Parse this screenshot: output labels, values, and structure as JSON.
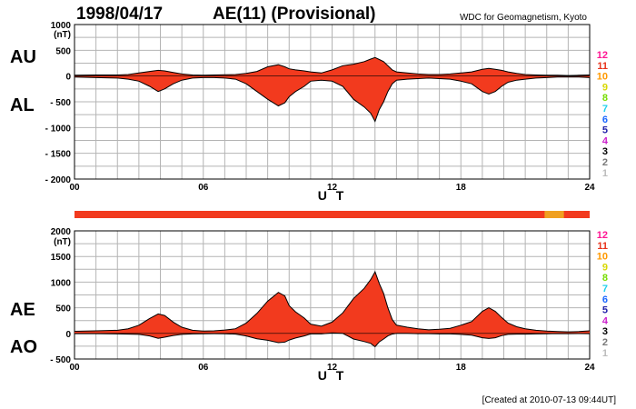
{
  "header": {
    "date": "1998/04/17",
    "title": "AE(11) (Provisional)",
    "source": "WDC for Geomagnetism, Kyoto"
  },
  "footer": "[Created at 2010-07-13 09:44UT]",
  "colors": {
    "fill": "#f23a1e",
    "outline": "#000000",
    "grid": "#b4b4b4",
    "station_bar_main": "#f23a1e",
    "station_bar_alt": "#f0a020"
  },
  "legend_counts": [
    {
      "label": "12",
      "color": "#ff1493"
    },
    {
      "label": "11",
      "color": "#e8331c"
    },
    {
      "label": "10",
      "color": "#ff9900"
    },
    {
      "label": "9",
      "color": "#d8d800"
    },
    {
      "label": "8",
      "color": "#77dd00"
    },
    {
      "label": "7",
      "color": "#22d0ee"
    },
    {
      "label": "6",
      "color": "#1a66ff"
    },
    {
      "label": "5",
      "color": "#2222aa"
    },
    {
      "label": "4",
      "color": "#cc22cc"
    },
    {
      "label": "3",
      "color": "#000000"
    },
    {
      "label": "2",
      "color": "#777777"
    },
    {
      "label": "1",
      "color": "#bbbbbb"
    }
  ],
  "chart_data": [
    {
      "type": "area",
      "xlabel": "U T",
      "ylabel_unit": "(nT)",
      "xlim": [
        0,
        24
      ],
      "ylim": [
        -2000,
        1000
      ],
      "xticks": [
        "00",
        "06",
        "12",
        "18",
        "24"
      ],
      "yticks": [
        "1000",
        "500",
        "0",
        "- 500",
        "- 1000",
        "- 1500",
        "- 2000"
      ],
      "upper_label": "AU",
      "lower_label": "AL",
      "x": [
        0,
        1,
        2,
        2.5,
        3,
        3.5,
        3.9,
        4.2,
        4.6,
        5,
        5.5,
        6,
        6.5,
        7,
        7.5,
        8,
        8.5,
        9,
        9.5,
        9.8,
        10,
        10.3,
        10.7,
        11,
        11.5,
        12,
        12.5,
        13,
        13.5,
        13.8,
        14,
        14.2,
        14.4,
        14.6,
        14.8,
        15,
        15.5,
        16,
        16.5,
        17,
        17.5,
        18,
        18.5,
        19,
        19.3,
        19.6,
        19.9,
        20.2,
        20.6,
        21,
        21.5,
        22,
        22.5,
        23,
        23.5,
        24
      ],
      "series": [
        {
          "values": [
            15,
            20,
            20,
            30,
            60,
            90,
            110,
            100,
            70,
            40,
            20,
            15,
            20,
            25,
            30,
            50,
            90,
            180,
            220,
            180,
            140,
            120,
            100,
            80,
            60,
            120,
            200,
            230,
            280,
            330,
            360,
            320,
            280,
            200,
            120,
            80,
            60,
            40,
            30,
            30,
            40,
            60,
            80,
            130,
            150,
            130,
            110,
            80,
            50,
            30,
            20,
            15,
            15,
            10,
            15,
            20
          ]
        },
        {
          "values": [
            -20,
            -30,
            -40,
            -60,
            -100,
            -200,
            -300,
            -250,
            -150,
            -80,
            -40,
            -30,
            -30,
            -40,
            -60,
            -150,
            -300,
            -450,
            -580,
            -520,
            -400,
            -300,
            -200,
            -100,
            -80,
            -100,
            -200,
            -450,
            -600,
            -720,
            -880,
            -650,
            -500,
            -300,
            -150,
            -80,
            -60,
            -50,
            -40,
            -50,
            -60,
            -100,
            -150,
            -300,
            -350,
            -300,
            -200,
            -120,
            -80,
            -60,
            -40,
            -30,
            -20,
            -20,
            -20,
            -30
          ]
        }
      ]
    },
    {
      "type": "area",
      "xlabel": "U T",
      "ylabel_unit": "(nT)",
      "xlim": [
        0,
        24
      ],
      "ylim": [
        -500,
        2000
      ],
      "xticks": [
        "00",
        "06",
        "12",
        "18",
        "24"
      ],
      "yticks": [
        "2000",
        "1500",
        "1000",
        "500",
        "0",
        "- 500"
      ],
      "upper_label": "AE",
      "lower_label": "AO",
      "x": [
        0,
        1,
        2,
        2.5,
        3,
        3.5,
        3.9,
        4.2,
        4.6,
        5,
        5.5,
        6,
        6.5,
        7,
        7.5,
        8,
        8.5,
        9,
        9.5,
        9.8,
        10,
        10.3,
        10.7,
        11,
        11.5,
        12,
        12.5,
        13,
        13.5,
        13.8,
        14,
        14.2,
        14.4,
        14.6,
        14.8,
        15,
        15.5,
        16,
        16.5,
        17,
        17.5,
        18,
        18.5,
        19,
        19.3,
        19.6,
        19.9,
        20.2,
        20.6,
        21,
        21.5,
        22,
        22.5,
        23,
        23.5,
        24
      ],
      "series": [
        {
          "values": [
            40,
            50,
            60,
            90,
            160,
            290,
            380,
            350,
            220,
            120,
            60,
            45,
            50,
            65,
            90,
            200,
            390,
            630,
            800,
            730,
            540,
            420,
            300,
            180,
            140,
            220,
            400,
            680,
            880,
            1050,
            1200,
            970,
            780,
            500,
            270,
            160,
            120,
            90,
            70,
            80,
            100,
            160,
            230,
            430,
            500,
            430,
            310,
            200,
            130,
            90,
            60,
            45,
            35,
            30,
            35,
            50
          ]
        },
        {
          "values": [
            -5,
            -5,
            -10,
            -15,
            -20,
            -50,
            -95,
            -75,
            -40,
            -20,
            -10,
            -7,
            -5,
            -7,
            -15,
            -50,
            -105,
            -135,
            -180,
            -170,
            -130,
            -90,
            -50,
            -10,
            -10,
            10,
            0,
            -110,
            -160,
            -195,
            -260,
            -165,
            -110,
            -50,
            -15,
            0,
            0,
            -5,
            -5,
            -10,
            -10,
            -20,
            -35,
            -85,
            -100,
            -85,
            -45,
            -20,
            -15,
            -15,
            -10,
            -7,
            -3,
            -5,
            -3,
            -5
          ]
        }
      ]
    }
  ]
}
